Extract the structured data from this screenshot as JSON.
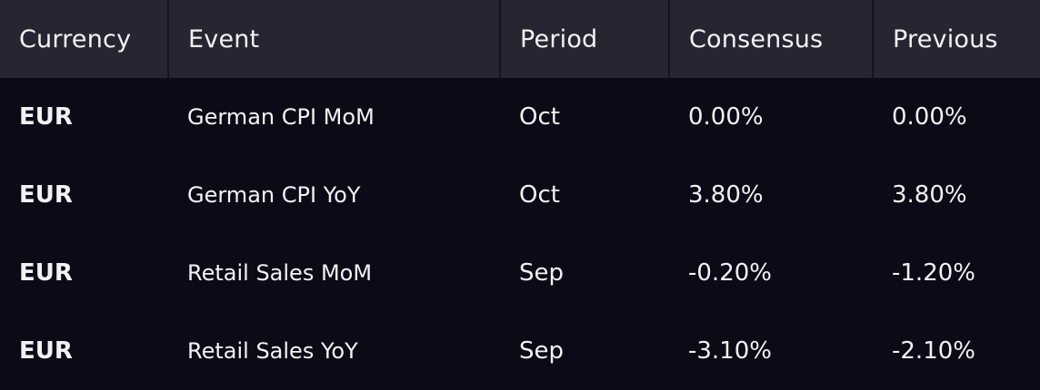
{
  "table": {
    "headers": [
      "Currency",
      "Event",
      "Period",
      "Consensus",
      "Previous"
    ],
    "rows": [
      {
        "currency": "EUR",
        "event": "German CPI MoM",
        "period": "Oct",
        "consensus": "0.00%",
        "previous": "0.00%"
      },
      {
        "currency": "EUR",
        "event": "German CPI YoY",
        "period": "Oct",
        "consensus": "3.80%",
        "previous": "3.80%"
      },
      {
        "currency": "EUR",
        "event": "Retail Sales MoM",
        "period": "Sep",
        "consensus": "-0.20%",
        "previous": "-1.20%"
      },
      {
        "currency": "EUR",
        "event": "Retail Sales YoY",
        "period": "Sep",
        "consensus": "-3.10%",
        "previous": "-2.10%"
      }
    ]
  },
  "colors": {
    "header_bg": "#262633",
    "body_bg": "#0b0b18",
    "text": "#f2f2f5"
  }
}
